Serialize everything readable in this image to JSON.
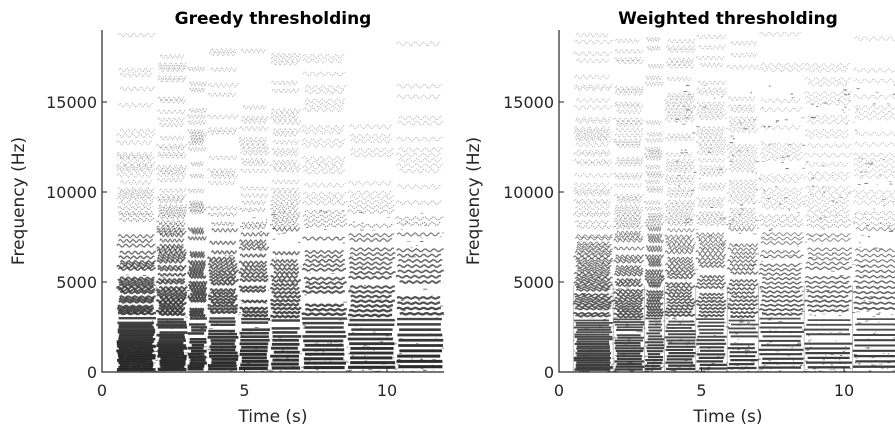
{
  "chart_data": [
    {
      "type": "heatmap",
      "title": "Greedy thresholding",
      "xlabel": "Time (s)",
      "ylabel": "Frequency (Hz)",
      "xlim": [
        0,
        12
      ],
      "ylim": [
        0,
        19000
      ],
      "xticks": [
        0,
        5,
        10
      ],
      "yticks": [
        0,
        5000,
        10000,
        15000
      ],
      "colormap": "gray-inverted",
      "grid": false
    },
    {
      "type": "heatmap",
      "title": "Weighted thresholding",
      "xlabel": "Time (s)",
      "ylabel": "Frequency (Hz)",
      "xlim": [
        0,
        12
      ],
      "ylim": [
        0,
        19000
      ],
      "xticks": [
        0,
        5,
        10
      ],
      "yticks": [
        0,
        5000,
        10000,
        15000
      ],
      "colormap": "gray-inverted",
      "grid": false
    }
  ]
}
